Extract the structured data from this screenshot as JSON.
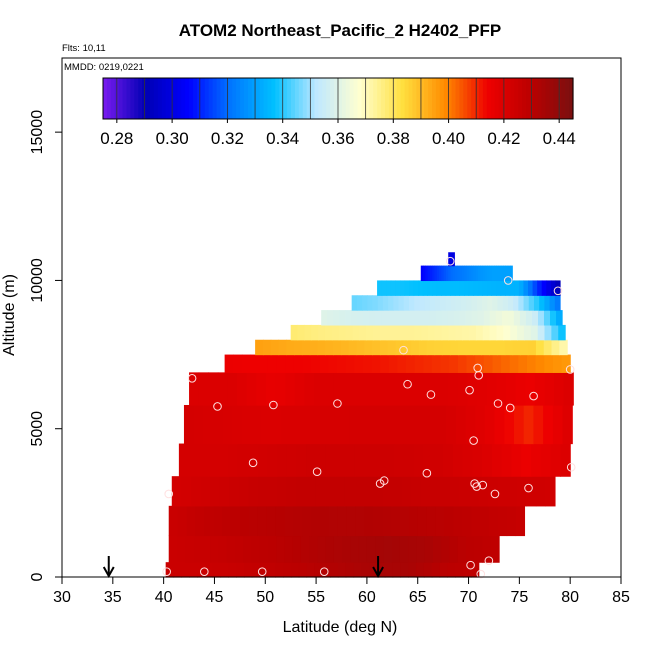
{
  "chart_data": {
    "type": "heatmap",
    "title": "ATOM2 Northeast_Pacific_2 H2402_PFP",
    "flights_label": "Flts: 10,11",
    "dates_label": "MMDD: 0219,0221",
    "xlabel": "Latitude (deg N)",
    "ylabel": "Altitude (m)",
    "xlim": [
      30,
      85
    ],
    "ylim": [
      0,
      17500
    ],
    "x_ticks": [
      "30",
      "35",
      "40",
      "45",
      "50",
      "55",
      "60",
      "65",
      "70",
      "75",
      "80",
      "85"
    ],
    "x_tick_values": [
      30,
      35,
      40,
      45,
      50,
      55,
      60,
      65,
      70,
      75,
      80,
      85
    ],
    "y_ticks": [
      "0",
      "5000",
      "10000",
      "15000"
    ],
    "y_tick_values": [
      0,
      5000,
      10000,
      15000
    ],
    "colorbar": {
      "min": 0.275,
      "max": 0.445,
      "ticks": [
        "0.28",
        "0.30",
        "0.32",
        "0.34",
        "0.36",
        "0.38",
        "0.40",
        "0.42",
        "0.44"
      ],
      "tick_values": [
        0.28,
        0.3,
        0.32,
        0.34,
        0.36,
        0.38,
        0.4,
        0.42,
        0.44
      ],
      "colors": [
        "#7a1bf0",
        "#0000b4",
        "#0000ff",
        "#0077ff",
        "#00c0ff",
        "#bfe8ff",
        "#ffffd0",
        "#ffe040",
        "#ff8c00",
        "#ee0000",
        "#bb0000",
        "#7a1010"
      ]
    },
    "rows": [
      {
        "y0": 0,
        "y1": 500,
        "x0": 40.2,
        "x1": 71.0,
        "values": [
          0.425,
          0.425,
          0.426,
          0.428,
          0.43,
          0.432,
          0.434,
          0.434,
          0.43,
          0.428
        ]
      },
      {
        "y0": 500,
        "y1": 1400,
        "x0": 40.5,
        "x1": 73.0,
        "values": [
          0.425,
          0.426,
          0.428,
          0.43,
          0.432,
          0.434,
          0.435,
          0.434,
          0.43,
          0.428
        ]
      },
      {
        "y0": 1400,
        "y1": 2400,
        "x0": 40.5,
        "x1": 75.5,
        "values": [
          0.425,
          0.428,
          0.43,
          0.431,
          0.432,
          0.432,
          0.431,
          0.43,
          0.428,
          0.426
        ]
      },
      {
        "y0": 2400,
        "y1": 3400,
        "x0": 40.8,
        "x1": 78.5,
        "values": [
          0.422,
          0.424,
          0.426,
          0.427,
          0.427,
          0.427,
          0.426,
          0.425,
          0.424,
          0.423
        ]
      },
      {
        "y0": 3400,
        "y1": 4500,
        "x0": 41.5,
        "x1": 80.0,
        "values": [
          0.422,
          0.422,
          0.423,
          0.424,
          0.424,
          0.424,
          0.423,
          0.42,
          0.415,
          0.42
        ]
      },
      {
        "y0": 4500,
        "y1": 5800,
        "x0": 42.0,
        "x1": 80.2,
        "values": [
          0.422,
          0.421,
          0.42,
          0.421,
          0.422,
          0.422,
          0.422,
          0.418,
          0.41,
          0.42
        ]
      },
      {
        "y0": 5800,
        "y1": 6900,
        "x0": 42.5,
        "x1": 80.3,
        "values": [
          0.42,
          0.42,
          0.416,
          0.42,
          0.42,
          0.42,
          0.42,
          0.418,
          0.415,
          0.42
        ]
      },
      {
        "y0": 6900,
        "y1": 7500,
        "x0": 46.0,
        "x1": 80.0,
        "values": [
          0.415,
          0.414,
          0.414,
          0.413,
          0.412,
          0.41,
          0.408,
          0.404,
          0.4,
          0.396
        ]
      },
      {
        "y0": 7500,
        "y1": 8000,
        "x0": 49.0,
        "x1": 79.7,
        "values": [
          0.395,
          0.393,
          0.392,
          0.39,
          0.388,
          0.386,
          0.385,
          0.385,
          0.386,
          0.37
        ]
      },
      {
        "y0": 8000,
        "y1": 8500,
        "x0": 52.5,
        "x1": 79.5,
        "values": [
          0.378,
          0.376,
          0.375,
          0.374,
          0.374,
          0.373,
          0.372,
          0.368,
          0.36,
          0.335
        ]
      },
      {
        "y0": 8500,
        "y1": 9000,
        "x0": 55.5,
        "x1": 79.2,
        "values": [
          0.36,
          0.358,
          0.357,
          0.357,
          0.357,
          0.358,
          0.36,
          0.365,
          0.355,
          0.33
        ]
      },
      {
        "y0": 9000,
        "y1": 9500,
        "x0": 58.5,
        "x1": 79.0,
        "values": [
          0.345,
          0.347,
          0.35,
          0.353,
          0.355,
          0.357,
          0.36,
          0.355,
          0.34,
          0.32
        ]
      },
      {
        "y0": 9500,
        "y1": 10000,
        "x0": 61.0,
        "x1": 79.0,
        "values": [
          0.338,
          0.338,
          0.337,
          0.336,
          0.336,
          0.335,
          0.334,
          0.334,
          0.31,
          0.29
        ]
      },
      {
        "y0": 10000,
        "y1": 10500,
        "x0": 65.3,
        "x1": 74.3,
        "values": [
          0.305,
          0.31,
          0.315,
          0.32,
          0.322,
          0.325,
          0.328,
          0.33,
          0.33,
          0.33
        ]
      },
      {
        "y0": 10500,
        "y1": 10950,
        "x0": 68.0,
        "x1": 68.6,
        "values": [
          0.3
        ]
      }
    ],
    "points": [
      [
        40.3,
        180
      ],
      [
        44.0,
        180
      ],
      [
        49.7,
        180
      ],
      [
        55.8,
        180
      ],
      [
        70.2,
        400
      ],
      [
        71.2,
        100
      ],
      [
        72.0,
        550
      ],
      [
        40.5,
        2800
      ],
      [
        61.3,
        3150
      ],
      [
        61.7,
        3250
      ],
      [
        65.9,
        3500
      ],
      [
        70.6,
        3150
      ],
      [
        70.8,
        3050
      ],
      [
        71.4,
        3100
      ],
      [
        72.6,
        2800
      ],
      [
        75.9,
        3000
      ],
      [
        80.1,
        3700
      ],
      [
        48.8,
        3850
      ],
      [
        55.1,
        3550
      ],
      [
        70.5,
        4600
      ],
      [
        45.3,
        5750
      ],
      [
        50.8,
        5800
      ],
      [
        57.1,
        5850
      ],
      [
        66.3,
        6150
      ],
      [
        70.1,
        6300
      ],
      [
        72.9,
        5850
      ],
      [
        74.1,
        5700
      ],
      [
        76.4,
        6100
      ],
      [
        64.0,
        6500
      ],
      [
        42.8,
        6700
      ],
      [
        71.0,
        6800
      ],
      [
        70.9,
        7050
      ],
      [
        63.6,
        7650
      ],
      [
        80.0,
        7000
      ],
      [
        73.9,
        10000
      ],
      [
        78.8,
        9650
      ],
      [
        68.2,
        10650
      ]
    ],
    "arrows_at_latitude": [
      34.6,
      61.1
    ]
  }
}
